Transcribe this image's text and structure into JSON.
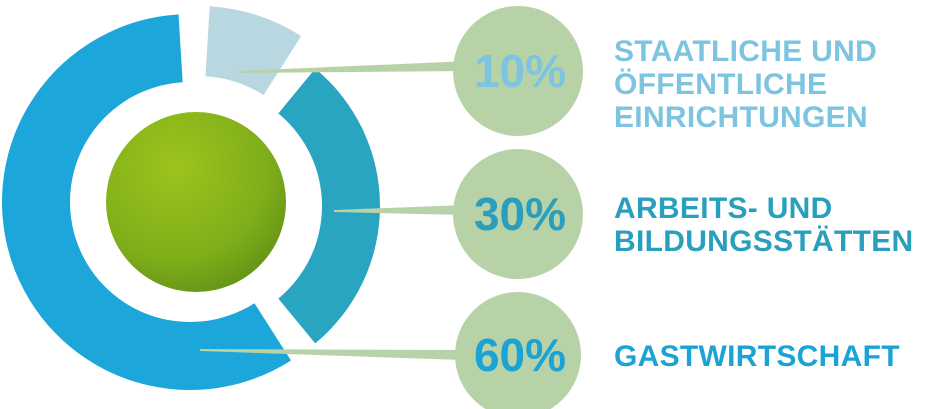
{
  "chart_data": {
    "type": "pie",
    "categories": [
      "STAATLICHE UND ÖFFENTLICHE EINRICHTUNGEN",
      "ARBEITS- UND BILDUNGSSTÄTTEN",
      "GASTWIRTSCHAFT"
    ],
    "values": [
      10,
      30,
      60
    ],
    "value_labels": [
      "10%",
      "30%",
      "60%"
    ],
    "label_lines": [
      [
        "STAATLICHE UND",
        "ÖFFENTLICHE",
        "EINRICHTUNGEN"
      ],
      [
        "ARBEITS- UND",
        "BILDUNGSSTÄTTEN"
      ],
      [
        "GASTWIRTSCHAFT"
      ]
    ],
    "slice_colors": [
      "#b9d7e0",
      "#29a5c2",
      "#1da6d9"
    ],
    "label_colors": [
      "#7cc4e0",
      "#2a9fbd",
      "#1ba3d6"
    ],
    "bubble_color": "#b8d2a8",
    "center_color": "#8fba1c",
    "legend_position": "right"
  }
}
